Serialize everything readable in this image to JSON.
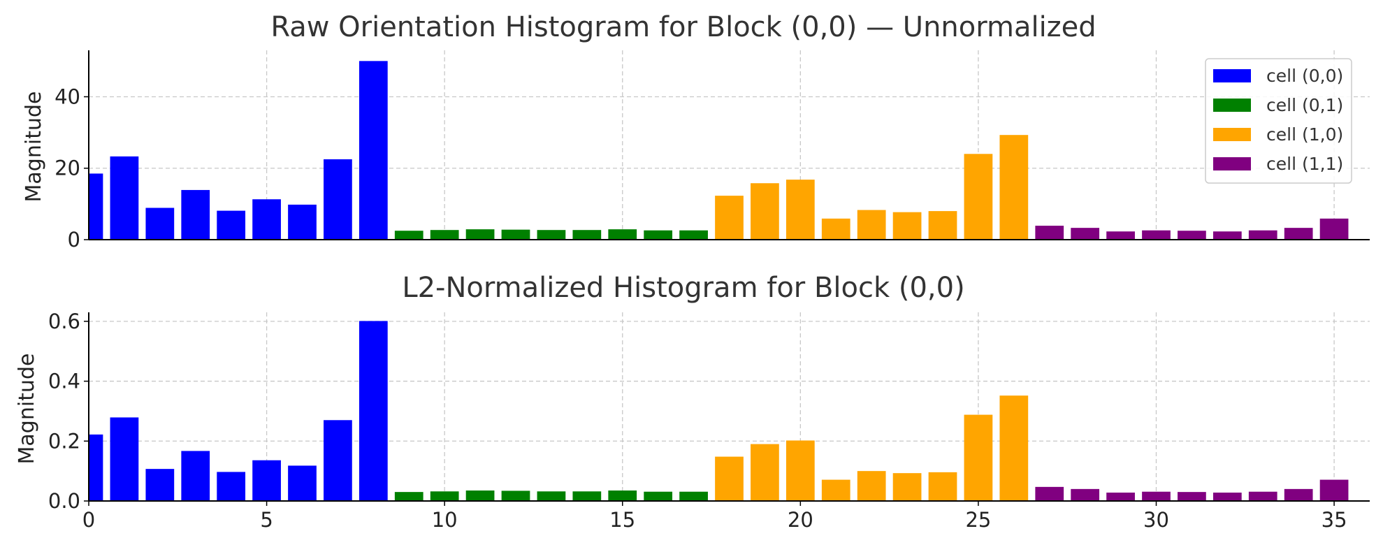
{
  "chart_data": [
    {
      "type": "bar",
      "title": "Raw Orientation Histogram for Block (0,0) — Unnormalized",
      "xlabel": "",
      "ylabel": "Magnitude",
      "xlim": [
        0,
        36
      ],
      "ylim": [
        0,
        53
      ],
      "xticks": [],
      "yticks": [
        0,
        20,
        40
      ],
      "grid": true,
      "legend": {
        "placement": "top-right",
        "entries": [
          {
            "label": "cell (0,0)",
            "color": "#0000ff"
          },
          {
            "label": "cell (0,1)",
            "color": "#008000"
          },
          {
            "label": "cell (1,0)",
            "color": "#ffa500"
          },
          {
            "label": "cell (1,1)",
            "color": "#800080"
          }
        ]
      },
      "x": [
        0,
        1,
        2,
        3,
        4,
        5,
        6,
        7,
        8,
        9,
        10,
        11,
        12,
        13,
        14,
        15,
        16,
        17,
        18,
        19,
        20,
        21,
        22,
        23,
        24,
        25,
        26,
        27,
        28,
        29,
        30,
        31,
        32,
        33,
        34,
        35
      ],
      "values": [
        18.5,
        23.3,
        8.9,
        13.9,
        8.1,
        11.3,
        9.8,
        22.5,
        50.0,
        2.5,
        2.7,
        2.9,
        2.8,
        2.7,
        2.7,
        2.9,
        2.6,
        2.6,
        12.3,
        15.8,
        16.8,
        5.9,
        8.3,
        7.7,
        8.0,
        24.0,
        29.3,
        3.9,
        3.3,
        2.3,
        2.6,
        2.5,
        2.3,
        2.6,
        3.3,
        5.9
      ],
      "series": [
        {
          "name": "cell (0,0)",
          "color": "#0000ff",
          "x": [
            0,
            1,
            2,
            3,
            4,
            5,
            6,
            7,
            8
          ]
        },
        {
          "name": "cell (0,1)",
          "color": "#008000",
          "x": [
            9,
            10,
            11,
            12,
            13,
            14,
            15,
            16,
            17
          ]
        },
        {
          "name": "cell (1,0)",
          "color": "#ffa500",
          "x": [
            18,
            19,
            20,
            21,
            22,
            23,
            24,
            25,
            26
          ]
        },
        {
          "name": "cell (1,1)",
          "color": "#800080",
          "x": [
            27,
            28,
            29,
            30,
            31,
            32,
            33,
            34,
            35
          ]
        }
      ]
    },
    {
      "type": "bar",
      "title": "L2-Normalized Histogram for Block (0,0)",
      "xlabel": "",
      "ylabel": "Magnitude",
      "xlim": [
        0,
        36
      ],
      "ylim": [
        0,
        0.63
      ],
      "xticks": [
        0,
        5,
        10,
        15,
        20,
        25,
        30,
        35
      ],
      "yticks": [
        "0.0",
        "0.2",
        "0.4",
        "0.6"
      ],
      "grid": true,
      "x": [
        0,
        1,
        2,
        3,
        4,
        5,
        6,
        7,
        8,
        9,
        10,
        11,
        12,
        13,
        14,
        15,
        16,
        17,
        18,
        19,
        20,
        21,
        22,
        23,
        24,
        25,
        26,
        27,
        28,
        29,
        30,
        31,
        32,
        33,
        34,
        35
      ],
      "values": [
        0.222,
        0.279,
        0.107,
        0.167,
        0.097,
        0.136,
        0.118,
        0.27,
        0.601,
        0.03,
        0.032,
        0.035,
        0.034,
        0.032,
        0.032,
        0.035,
        0.031,
        0.031,
        0.148,
        0.19,
        0.202,
        0.071,
        0.1,
        0.093,
        0.096,
        0.288,
        0.352,
        0.047,
        0.04,
        0.028,
        0.031,
        0.03,
        0.028,
        0.031,
        0.04,
        0.071
      ],
      "series": [
        {
          "name": "cell (0,0)",
          "color": "#0000ff",
          "x": [
            0,
            1,
            2,
            3,
            4,
            5,
            6,
            7,
            8
          ]
        },
        {
          "name": "cell (0,1)",
          "color": "#008000",
          "x": [
            9,
            10,
            11,
            12,
            13,
            14,
            15,
            16,
            17
          ]
        },
        {
          "name": "cell (1,0)",
          "color": "#ffa500",
          "x": [
            18,
            19,
            20,
            21,
            22,
            23,
            24,
            25,
            26
          ]
        },
        {
          "name": "cell (1,1)",
          "color": "#800080",
          "x": [
            27,
            28,
            29,
            30,
            31,
            32,
            33,
            34,
            35
          ]
        }
      ]
    }
  ]
}
